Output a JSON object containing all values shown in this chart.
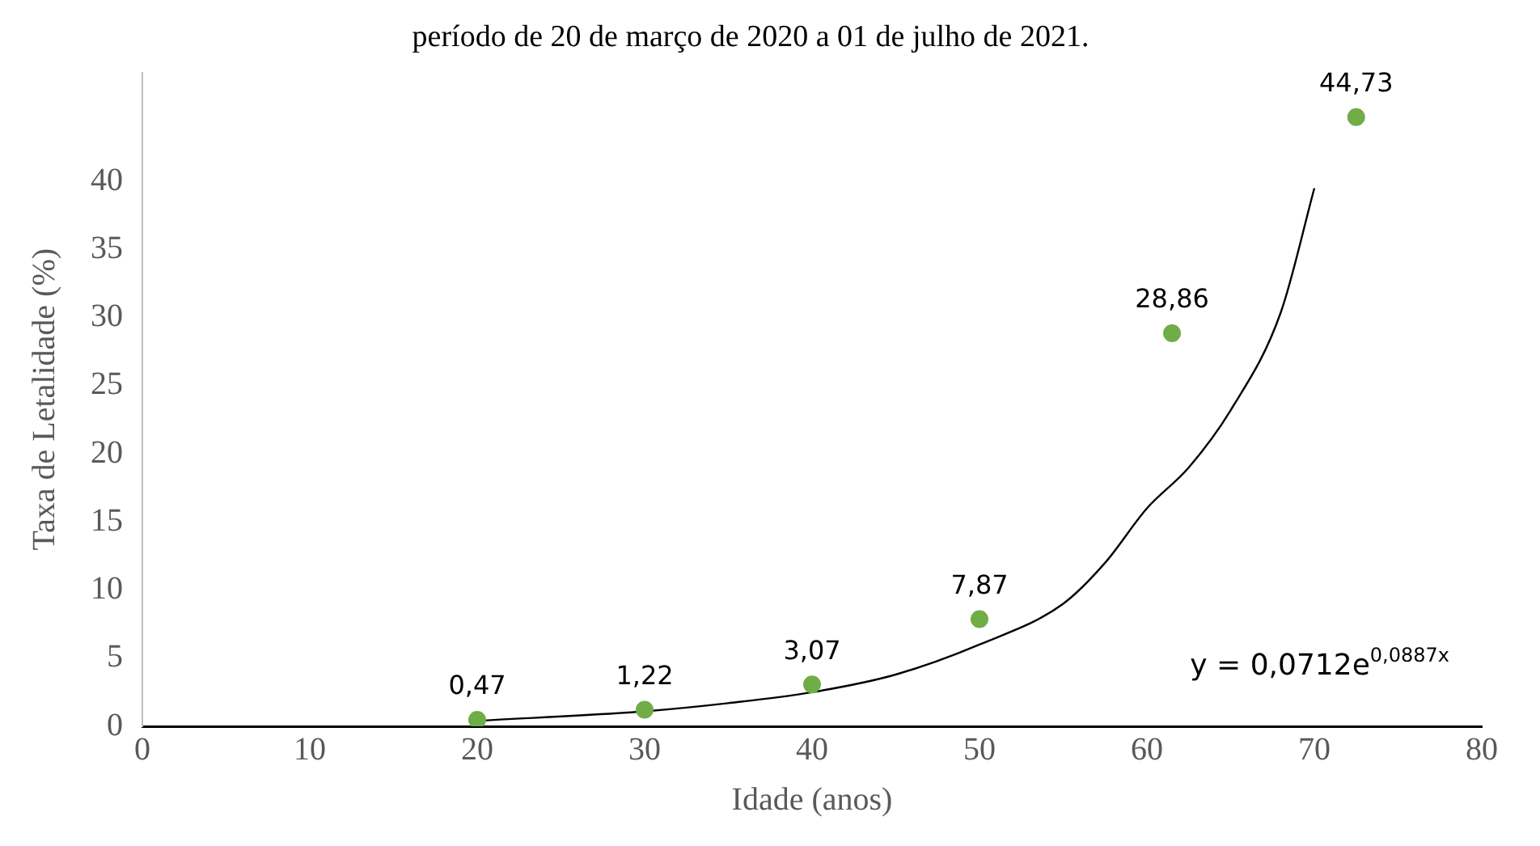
{
  "chart_data": {
    "type": "scatter",
    "title": "período de 20 de março de 2020 a 01 de julho de 2021.",
    "xlabel": "Idade (anos)",
    "ylabel": "Taxa de Letalidade (%)",
    "xlim": [
      0,
      80
    ],
    "xticks": [
      0,
      10,
      20,
      30,
      40,
      50,
      60,
      70,
      80
    ],
    "ylim": [
      0,
      48
    ],
    "yticks": [
      0,
      5,
      10,
      15,
      20,
      25,
      30,
      35,
      40
    ],
    "grid": false,
    "legend": false,
    "marker": "circle",
    "annotations": [
      "y = 0,0712e$^{0,0887x}$"
    ],
    "series": [
      {
        "color": "#70ad47",
        "x": [
          20,
          30,
          40,
          50,
          61.5,
          72.5
        ],
        "values": [
          0.47,
          1.22,
          3.07,
          7.87,
          28.86,
          44.73
        ],
        "value_labels": [
          "0,47",
          "1,22",
          "3,07",
          "7,87",
          "28,86",
          "44,73"
        ]
      },
      {
        "type": "line",
        "color": "#000000",
        "marker": "none",
        "line_style": "solid",
        "x": [
          20,
          30,
          35,
          40,
          45,
          50,
          55,
          57.5,
          60,
          62.5,
          65,
          68,
          70
        ],
        "values": [
          0.4,
          1.1,
          1.7,
          2.5,
          3.8,
          6,
          9,
          12,
          16,
          19,
          23.2,
          30.4,
          39.5
        ]
      }
    ]
  }
}
